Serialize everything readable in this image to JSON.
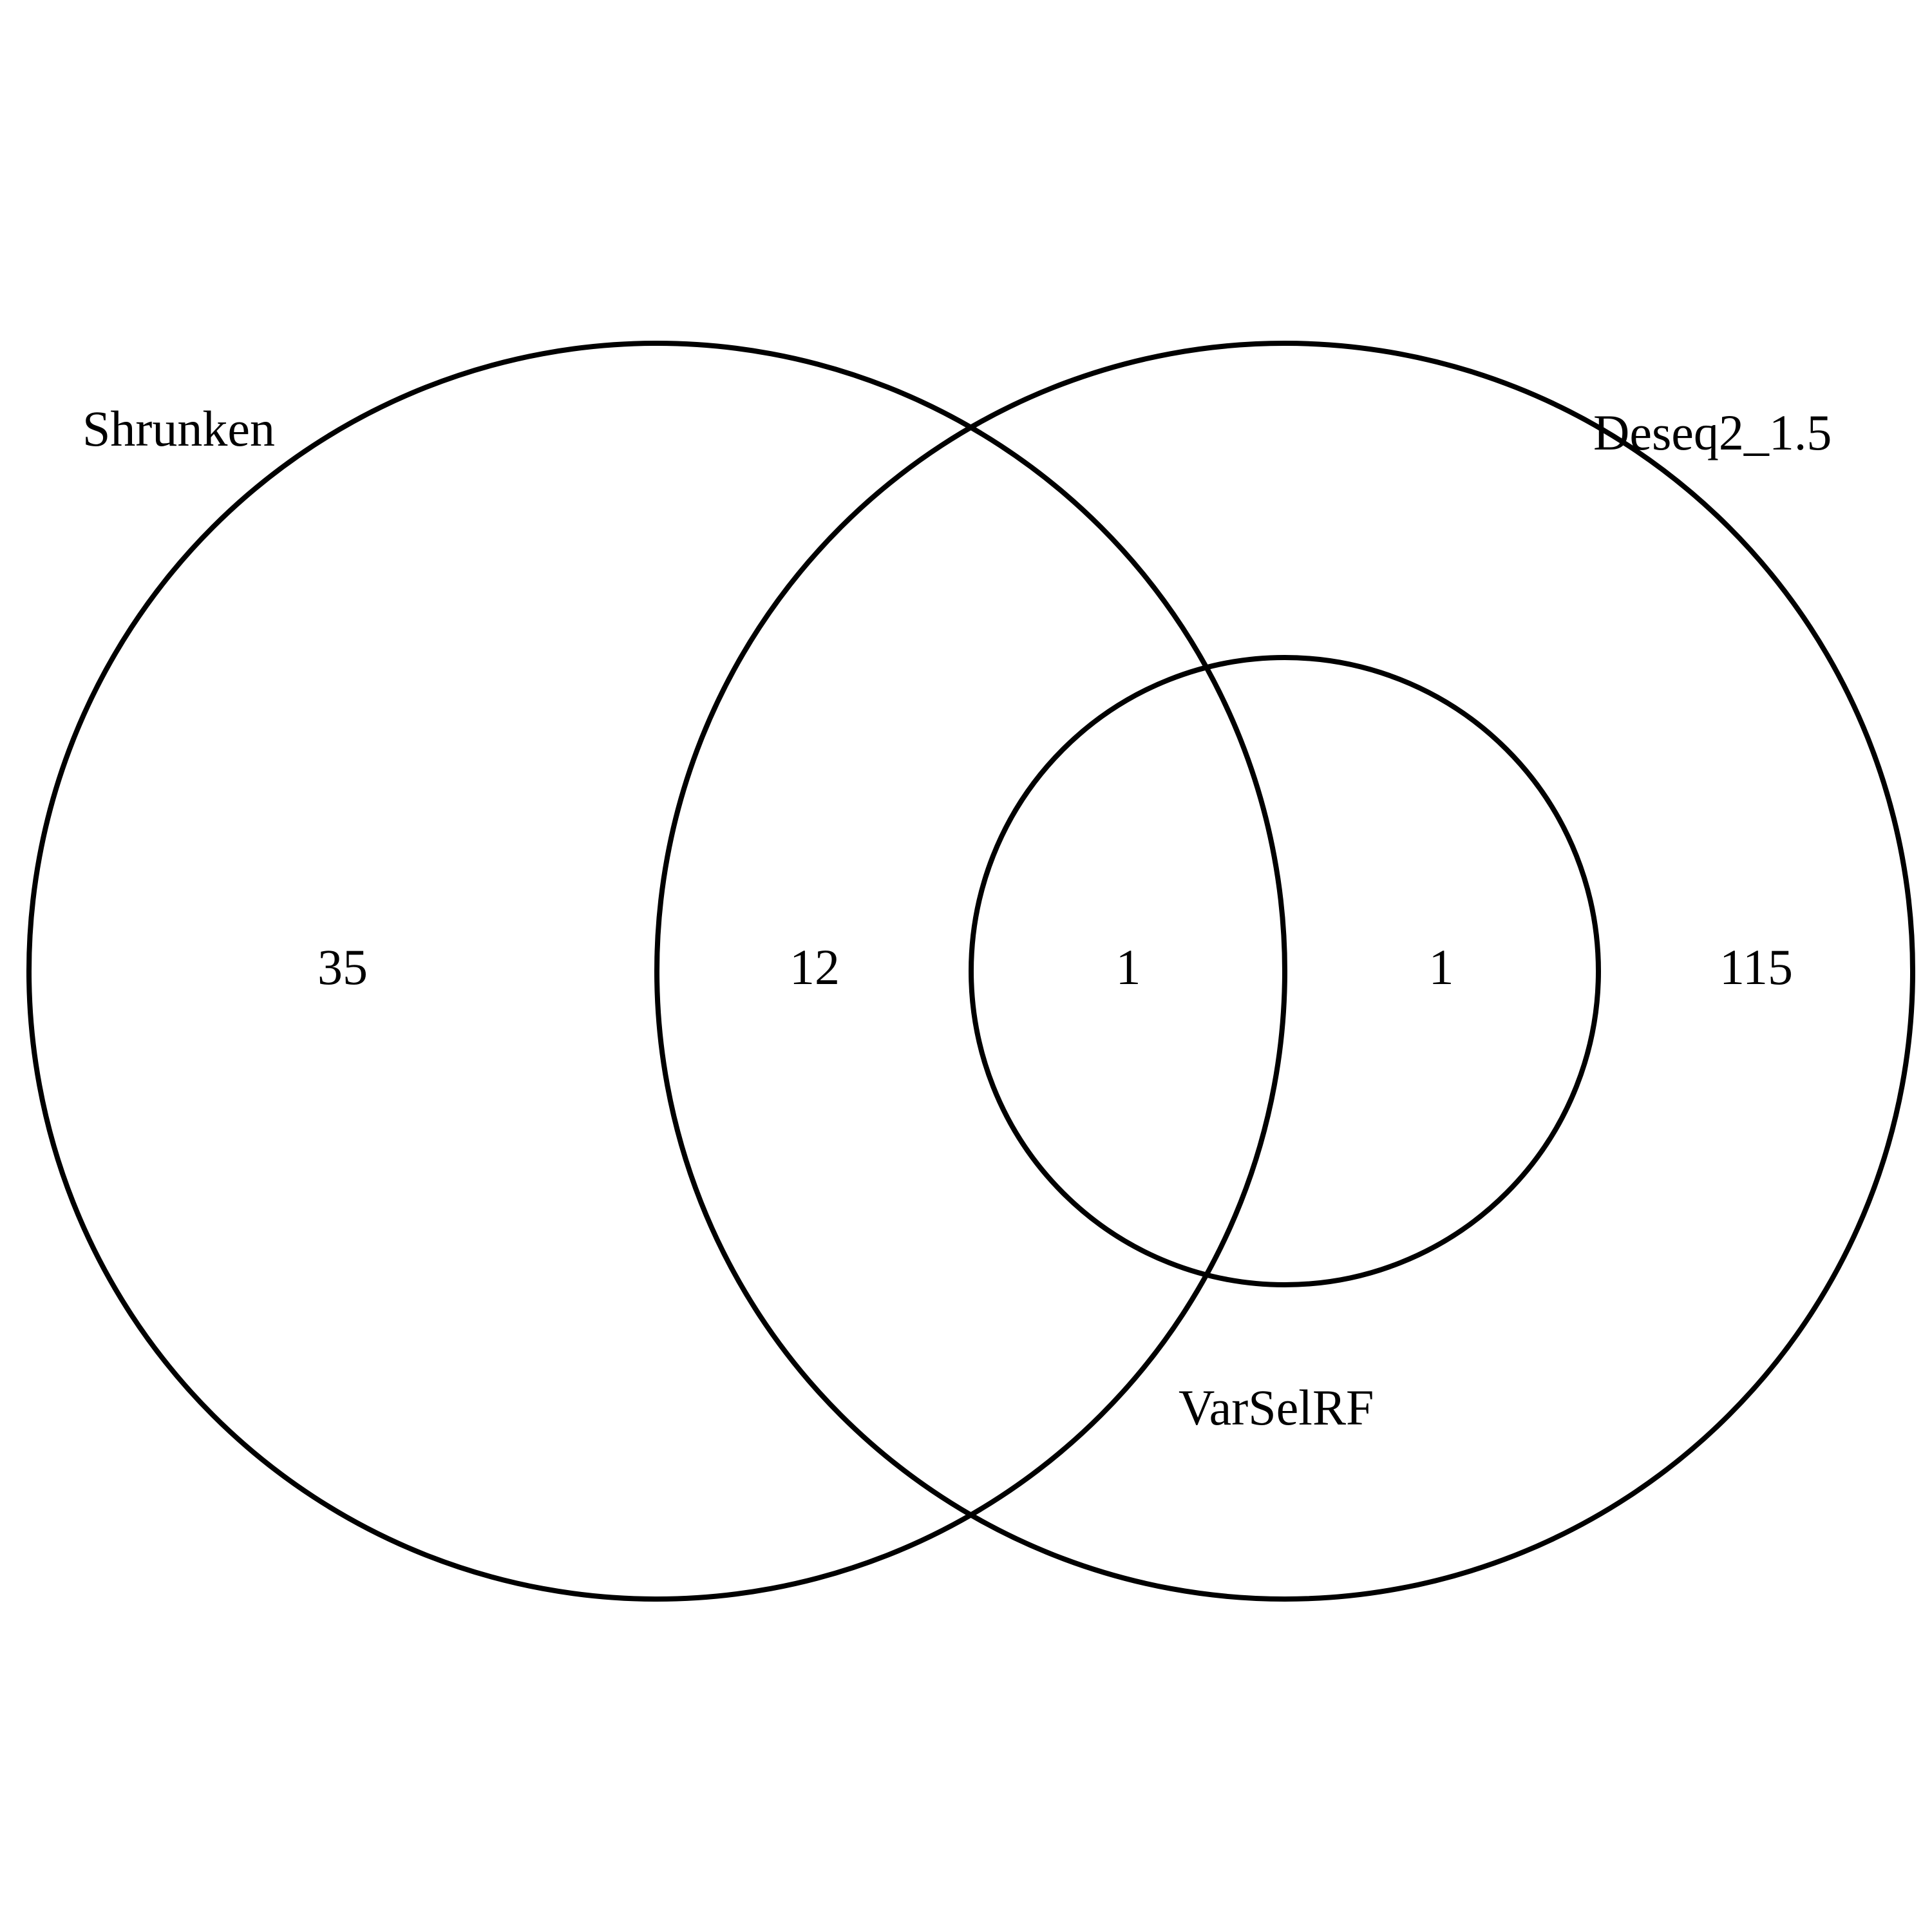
{
  "diagram": {
    "type": "venn",
    "sets": [
      {
        "name": "Shrunken"
      },
      {
        "name": "Deseq2_1.5"
      },
      {
        "name": "VarSelRF"
      }
    ],
    "regions": [
      {
        "sets": [
          "Shrunken"
        ],
        "count": "35"
      },
      {
        "sets": [
          "Shrunken",
          "Deseq2_1.5"
        ],
        "count": "12"
      },
      {
        "sets": [
          "Shrunken",
          "Deseq2_1.5",
          "VarSelRF"
        ],
        "count": "1"
      },
      {
        "sets": [
          "Deseq2_1.5",
          "VarSelRF"
        ],
        "count": "1"
      },
      {
        "sets": [
          "Deseq2_1.5"
        ],
        "count": "115"
      }
    ],
    "stroke_color": "#000000",
    "background_color": "#ffffff"
  }
}
